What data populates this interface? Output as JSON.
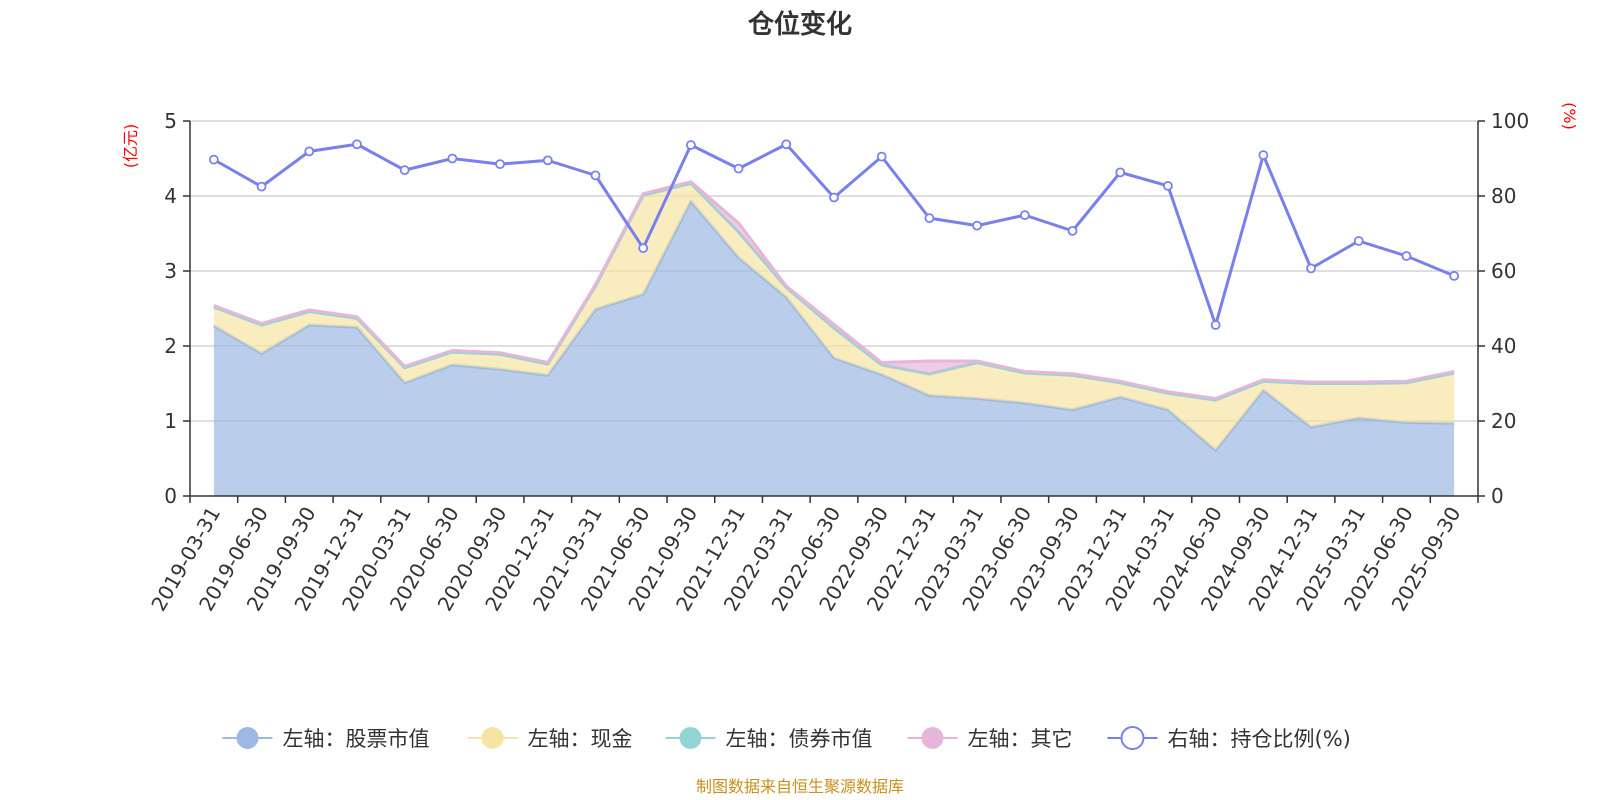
{
  "chart_data": {
    "type": "area",
    "title": "仓位变化",
    "left_axis_unit": "(亿元)",
    "right_axis_unit": "(%)",
    "left_ylim": [
      0,
      5
    ],
    "left_yticks": [
      0,
      1,
      2,
      3,
      4,
      5
    ],
    "right_ylim": [
      0,
      100
    ],
    "right_yticks": [
      0,
      20,
      40,
      60,
      80,
      100
    ],
    "grid": true,
    "legend_position": "bottom",
    "source_note": "制图数据来自恒生聚源数据库",
    "categories": [
      "2019-03-31",
      "2019-06-30",
      "2019-09-30",
      "2019-12-31",
      "2020-03-31",
      "2020-06-30",
      "2020-09-30",
      "2020-12-31",
      "2021-03-31",
      "2021-06-30",
      "2021-09-30",
      "2021-12-31",
      "2022-03-31",
      "2022-06-30",
      "2022-09-30",
      "2022-12-31",
      "2023-03-31",
      "2023-06-30",
      "2023-09-30",
      "2023-12-31",
      "2024-03-31",
      "2024-06-30",
      "2024-09-30",
      "2024-12-31",
      "2025-03-31",
      "2025-06-30",
      "2025-09-30"
    ],
    "series": [
      {
        "name": "左轴：股票市值",
        "axis": "left",
        "kind": "stacked-area",
        "color": "#9db9e3",
        "values": [
          2.27,
          1.9,
          2.28,
          2.25,
          1.51,
          1.75,
          1.69,
          1.61,
          2.49,
          2.69,
          3.93,
          3.18,
          2.65,
          1.84,
          1.62,
          1.34,
          1.3,
          1.24,
          1.15,
          1.32,
          1.15,
          0.61,
          1.41,
          0.92,
          1.04,
          0.98,
          0.97
        ]
      },
      {
        "name": "左轴：现金",
        "axis": "left",
        "kind": "stacked-area",
        "color": "#f7e4a2",
        "values": [
          0.25,
          0.38,
          0.18,
          0.12,
          0.2,
          0.17,
          0.2,
          0.15,
          0.3,
          1.32,
          0.24,
          0.34,
          0.13,
          0.4,
          0.12,
          0.28,
          0.48,
          0.4,
          0.46,
          0.19,
          0.22,
          0.67,
          0.12,
          0.58,
          0.46,
          0.53,
          0.67
        ]
      },
      {
        "name": "左轴：债券市值",
        "axis": "left",
        "kind": "stacked-area",
        "color": "#93d4d4",
        "values": [
          0,
          0,
          0,
          0,
          0,
          0,
          0,
          0,
          0.01,
          0,
          0,
          0,
          0,
          0,
          0.01,
          0.01,
          0,
          0,
          0,
          0,
          0,
          0,
          0,
          0,
          0,
          0,
          0
        ]
      },
      {
        "name": "左轴：其它",
        "axis": "left",
        "kind": "stacked-area",
        "color": "#e5b6d9",
        "values": [
          0.02,
          0.02,
          0.02,
          0.02,
          0.02,
          0.02,
          0.02,
          0.02,
          0.02,
          0.02,
          0.02,
          0.12,
          0.02,
          0.05,
          0.03,
          0.17,
          0.02,
          0.02,
          0.02,
          0.02,
          0.02,
          0.02,
          0.02,
          0.02,
          0.02,
          0.02,
          0.02
        ]
      },
      {
        "name": "右轴：持仓比例(%)",
        "axis": "right",
        "kind": "line",
        "color": "#7880ee",
        "values": [
          89.7,
          82.5,
          91.9,
          93.8,
          86.9,
          90.0,
          88.5,
          89.5,
          85.5,
          66.1,
          93.6,
          87.3,
          93.8,
          79.6,
          90.5,
          74.1,
          72.1,
          74.9,
          70.7,
          86.3,
          82.7,
          45.6,
          90.9,
          60.7,
          68.0,
          64.0,
          58.7
        ]
      }
    ]
  }
}
